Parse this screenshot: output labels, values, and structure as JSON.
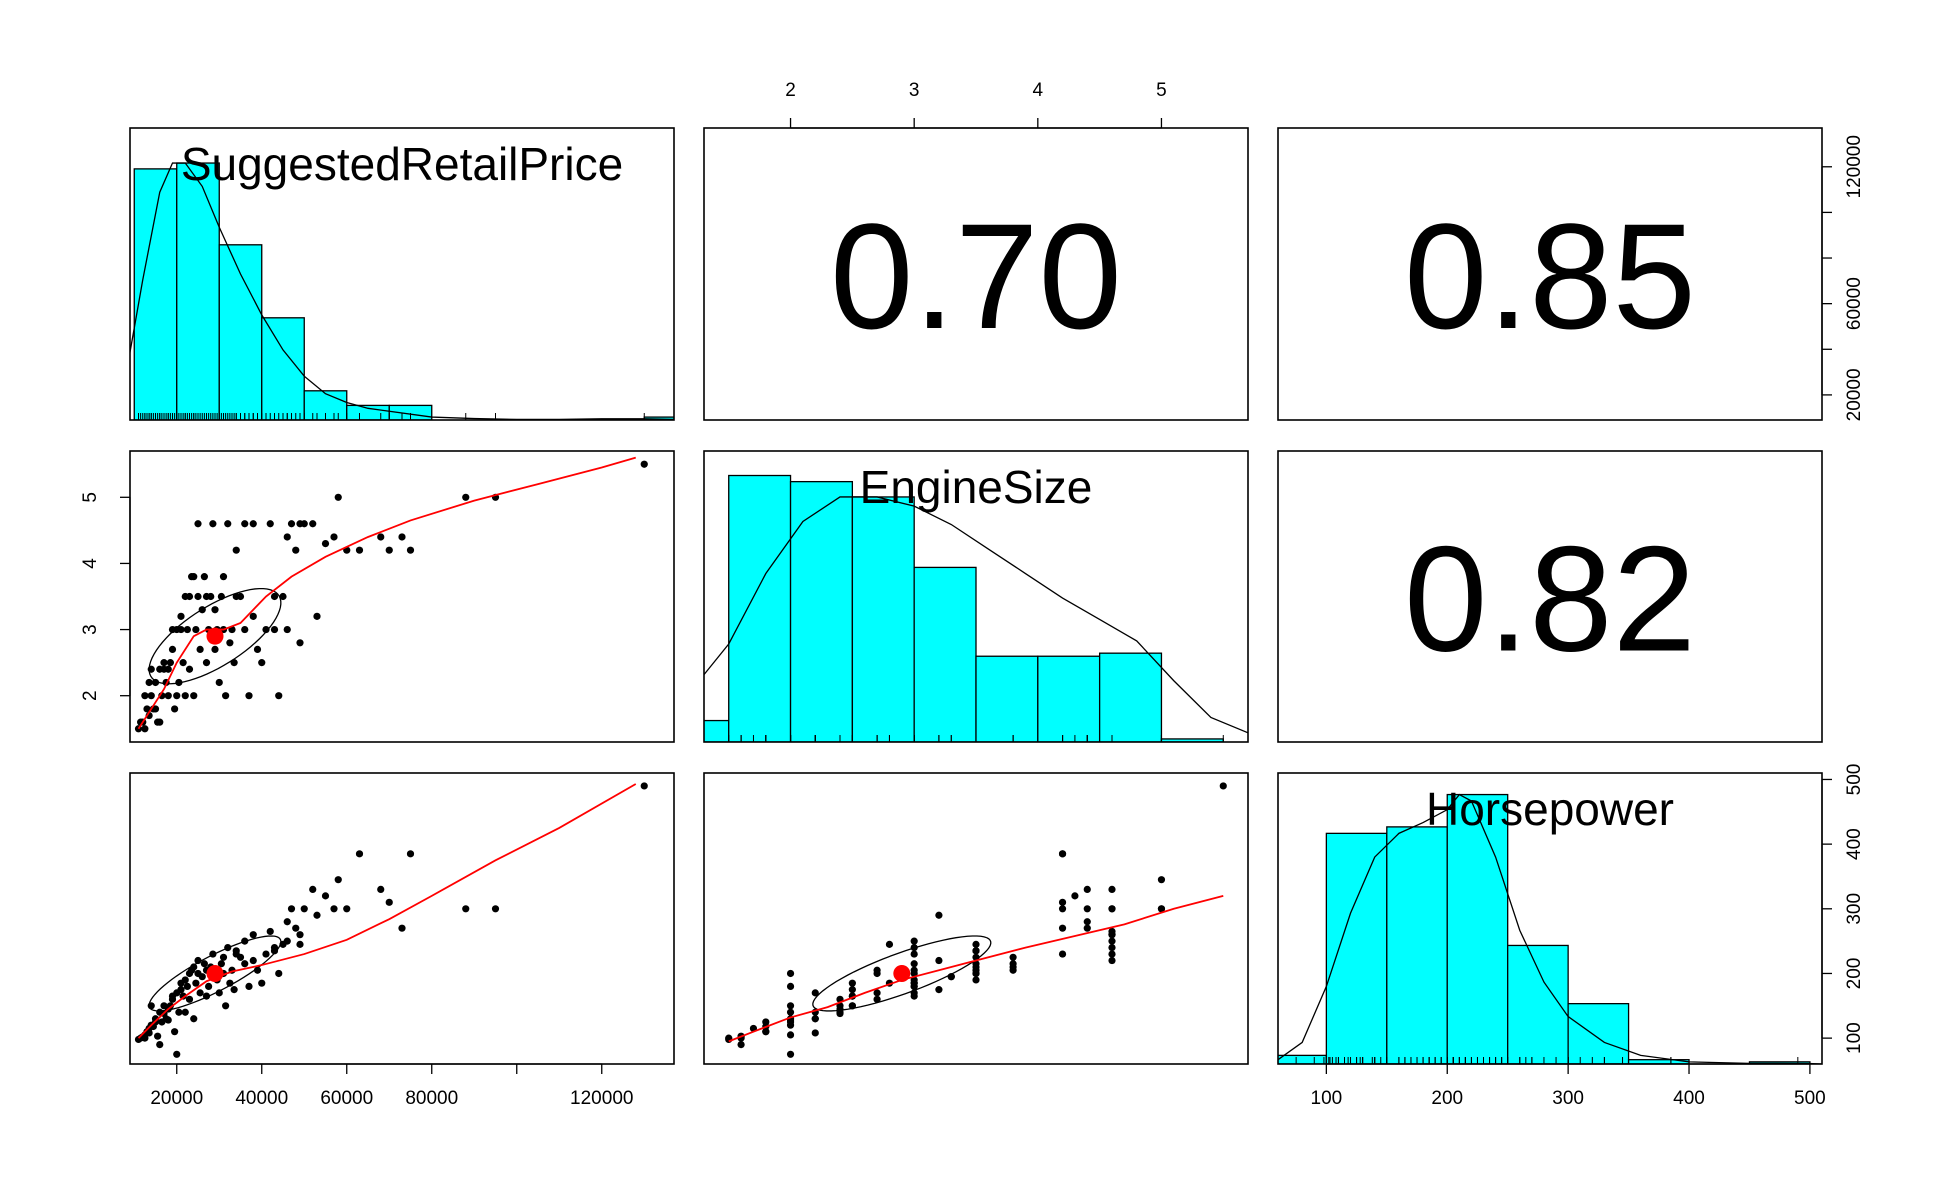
{
  "chart_data": {
    "type": "scatter",
    "title": "",
    "variables": [
      "SuggestedRetailPrice",
      "EngineSize",
      "Horsepower"
    ],
    "ranges": {
      "SuggestedRetailPrice": [
        9000,
        137000
      ],
      "EngineSize": [
        1.3,
        5.7
      ],
      "Horsepower": [
        60,
        510
      ]
    },
    "ticks": {
      "SuggestedRetailPrice": [
        20000,
        40000,
        60000,
        80000,
        120000
      ],
      "EngineSize": [
        2,
        3,
        4,
        5
      ],
      "Horsepower": [
        100,
        200,
        300,
        400,
        500
      ]
    },
    "minor_ticks": {
      "SuggestedRetailPrice": [
        100000
      ]
    },
    "correlations": [
      {
        "row": 0,
        "col": 1,
        "label": "0.70"
      },
      {
        "row": 0,
        "col": 2,
        "label": "0.85"
      },
      {
        "row": 1,
        "col": 2,
        "label": "0.82"
      }
    ],
    "histograms": {
      "SuggestedRetailPrice": {
        "breaks": [
          10000,
          20000,
          30000,
          40000,
          50000,
          60000,
          70000,
          80000,
          90000,
          100000,
          110000,
          120000,
          130000,
          140000
        ],
        "counts": [
          86,
          88,
          60,
          35,
          10,
          5,
          5,
          0,
          0,
          0,
          0,
          0,
          1
        ],
        "ymax": 100
      },
      "EngineSize": {
        "breaks": [
          1.0,
          1.5,
          2.0,
          2.5,
          3.0,
          3.5,
          4.0,
          4.5,
          5.0,
          5.5,
          6.0
        ],
        "counts": [
          7,
          87,
          85,
          80,
          57,
          28,
          28,
          29,
          1,
          0
        ],
        "ymax": 95
      },
      "Horsepower": {
        "breaks": [
          50,
          100,
          150,
          200,
          250,
          300,
          350,
          400,
          450,
          500
        ],
        "counts": [
          4,
          107,
          110,
          125,
          55,
          28,
          2,
          0,
          1
        ],
        "ymax": 135
      }
    },
    "density_curves": {
      "SuggestedRetailPrice": [
        [
          8000,
          15
        ],
        [
          12000,
          48
        ],
        [
          16000,
          78
        ],
        [
          19000,
          88
        ],
        [
          22000,
          88
        ],
        [
          26000,
          80
        ],
        [
          30000,
          66
        ],
        [
          35000,
          50
        ],
        [
          40000,
          36
        ],
        [
          45000,
          24
        ],
        [
          50000,
          15
        ],
        [
          55000,
          9
        ],
        [
          60000,
          6
        ],
        [
          65000,
          4
        ],
        [
          70000,
          3
        ],
        [
          80000,
          1
        ],
        [
          90000,
          0.5
        ],
        [
          100000,
          0.2
        ],
        [
          110000,
          0.2
        ],
        [
          120000,
          0.4
        ],
        [
          130000,
          0.4
        ],
        [
          138000,
          0.2
        ]
      ],
      "EngineSize": [
        [
          1.3,
          22
        ],
        [
          1.5,
          32
        ],
        [
          1.8,
          55
        ],
        [
          2.1,
          72
        ],
        [
          2.4,
          80
        ],
        [
          2.7,
          80
        ],
        [
          3.0,
          77
        ],
        [
          3.3,
          71
        ],
        [
          3.6,
          63
        ],
        [
          3.9,
          55
        ],
        [
          4.2,
          47
        ],
        [
          4.5,
          40
        ],
        [
          4.8,
          33
        ],
        [
          5.1,
          20
        ],
        [
          5.4,
          8
        ],
        [
          5.7,
          3
        ]
      ],
      "Horsepower": [
        [
          60,
          2
        ],
        [
          80,
          10
        ],
        [
          100,
          36
        ],
        [
          120,
          70
        ],
        [
          140,
          96
        ],
        [
          160,
          107
        ],
        [
          180,
          112
        ],
        [
          200,
          118
        ],
        [
          210,
          125
        ],
        [
          220,
          122
        ],
        [
          240,
          96
        ],
        [
          260,
          62
        ],
        [
          280,
          38
        ],
        [
          300,
          22
        ],
        [
          330,
          10
        ],
        [
          360,
          4
        ],
        [
          400,
          1
        ],
        [
          450,
          0.3
        ],
        [
          500,
          0.2
        ],
        [
          510,
          0
        ]
      ]
    },
    "loess": {
      "EngineSize_vs_Price": [
        [
          11000,
          1.5
        ],
        [
          14000,
          1.8
        ],
        [
          17000,
          2.1
        ],
        [
          20000,
          2.5
        ],
        [
          24000,
          2.9
        ],
        [
          27000,
          3.0
        ],
        [
          31000,
          3.0
        ],
        [
          35000,
          3.1
        ],
        [
          41000,
          3.5
        ],
        [
          47000,
          3.8
        ],
        [
          55000,
          4.1
        ],
        [
          65000,
          4.4
        ],
        [
          75000,
          4.65
        ],
        [
          90000,
          4.95
        ],
        [
          105000,
          5.2
        ],
        [
          120000,
          5.45
        ],
        [
          128000,
          5.6
        ]
      ],
      "Horsepower_vs_Price": [
        [
          11000,
          100
        ],
        [
          14000,
          120
        ],
        [
          18000,
          145
        ],
        [
          22000,
          165
        ],
        [
          27000,
          188
        ],
        [
          33000,
          203
        ],
        [
          40000,
          213
        ],
        [
          50000,
          230
        ],
        [
          60000,
          252
        ],
        [
          70000,
          284
        ],
        [
          80000,
          320
        ],
        [
          95000,
          375
        ],
        [
          110000,
          425
        ],
        [
          128000,
          493
        ]
      ],
      "Horsepower_vs_EngineSize": [
        [
          1.5,
          95
        ],
        [
          1.7,
          110
        ],
        [
          2.0,
          132
        ],
        [
          2.3,
          148
        ],
        [
          2.6,
          170
        ],
        [
          2.9,
          190
        ],
        [
          3.2,
          205
        ],
        [
          3.5,
          220
        ],
        [
          3.9,
          240
        ],
        [
          4.3,
          258
        ],
        [
          4.7,
          276
        ],
        [
          5.1,
          300
        ],
        [
          5.5,
          320
        ]
      ]
    },
    "means": {
      "SuggestedRetailPrice": 29000,
      "EngineSize": 2.9,
      "Horsepower": 200
    },
    "ellipses": {
      "EngineSize_vs_Price": {
        "center": [
          29000,
          2.9
        ],
        "cor": 0.7,
        "sd": [
          15500,
          0.72
        ]
      },
      "Horsepower_vs_Price": {
        "center": [
          29000,
          200
        ],
        "cor": 0.85,
        "sd": [
          15500,
          58
        ]
      },
      "Horsepower_vs_EngineSize": {
        "center": [
          2.9,
          200
        ],
        "cor": 0.82,
        "sd": [
          0.72,
          58
        ]
      }
    },
    "point_colors": {
      "fill": "#00FFFF",
      "points": "#000000",
      "smooth": "#FF0000",
      "mean": "#FF0000"
    },
    "scatter_points": [
      [
        11000,
        1.5,
        98
      ],
      [
        11500,
        1.6,
        100
      ],
      [
        12000,
        1.6,
        102
      ],
      [
        12500,
        1.5,
        100
      ],
      [
        13000,
        1.8,
        110
      ],
      [
        13500,
        1.7,
        115
      ],
      [
        14000,
        2.0,
        120
      ],
      [
        14500,
        1.8,
        118
      ],
      [
        15000,
        2.2,
        130
      ],
      [
        15500,
        1.6,
        103
      ],
      [
        16000,
        2.4,
        140
      ],
      [
        16500,
        2.0,
        125
      ],
      [
        17000,
        2.4,
        138
      ],
      [
        17500,
        2.2,
        130
      ],
      [
        18000,
        2.0,
        128
      ],
      [
        18500,
        2.5,
        150
      ],
      [
        19000,
        2.7,
        160
      ],
      [
        19500,
        1.8,
        110
      ],
      [
        20000,
        3.0,
        170
      ],
      [
        20500,
        2.2,
        140
      ],
      [
        21000,
        3.2,
        175
      ],
      [
        21500,
        2.5,
        165
      ],
      [
        22000,
        3.5,
        190
      ],
      [
        22500,
        3.0,
        180
      ],
      [
        23000,
        2.4,
        160
      ],
      [
        23500,
        3.8,
        205
      ],
      [
        24000,
        2.0,
        130
      ],
      [
        24500,
        3.0,
        185
      ],
      [
        25000,
        3.5,
        200
      ],
      [
        25500,
        2.7,
        170
      ],
      [
        26000,
        3.3,
        195
      ],
      [
        26500,
        3.8,
        215
      ],
      [
        27000,
        2.5,
        165
      ],
      [
        27500,
        3.0,
        180
      ],
      [
        28000,
        3.5,
        210
      ],
      [
        28500,
        4.6,
        230
      ],
      [
        29000,
        2.7,
        200
      ],
      [
        29500,
        3.0,
        190
      ],
      [
        30000,
        2.2,
        170
      ],
      [
        30500,
        3.5,
        215
      ],
      [
        31000,
        3.8,
        225
      ],
      [
        31500,
        2.0,
        150
      ],
      [
        32000,
        4.6,
        240
      ],
      [
        32500,
        2.8,
        185
      ],
      [
        33000,
        3.0,
        205
      ],
      [
        33500,
        2.5,
        175
      ],
      [
        34000,
        4.2,
        230
      ],
      [
        35000,
        3.5,
        225
      ],
      [
        36000,
        3.0,
        215
      ],
      [
        37000,
        2.0,
        180
      ],
      [
        38000,
        3.2,
        220
      ],
      [
        39000,
        2.7,
        205
      ],
      [
        40000,
        2.5,
        185
      ],
      [
        41000,
        3.0,
        230
      ],
      [
        42000,
        4.6,
        265
      ],
      [
        43000,
        3.0,
        240
      ],
      [
        44000,
        2.0,
        200
      ],
      [
        45000,
        3.5,
        245
      ],
      [
        46000,
        4.4,
        280
      ],
      [
        47000,
        4.6,
        300
      ],
      [
        48000,
        4.2,
        270
      ],
      [
        49000,
        2.8,
        245
      ],
      [
        50000,
        4.6,
        300
      ],
      [
        52000,
        4.6,
        330
      ],
      [
        53000,
        3.2,
        290
      ],
      [
        55000,
        4.3,
        320
      ],
      [
        57000,
        4.4,
        300
      ],
      [
        60000,
        4.2,
        300
      ],
      [
        63000,
        4.2,
        385
      ],
      [
        68000,
        4.4,
        330
      ],
      [
        70000,
        4.2,
        310
      ],
      [
        73000,
        4.4,
        270
      ],
      [
        75000,
        4.2,
        385
      ],
      [
        88000,
        5.0,
        300
      ],
      [
        95000,
        5.0,
        300
      ],
      [
        130000,
        5.5,
        490
      ],
      [
        12500,
        2.0,
        105
      ],
      [
        13500,
        2.2,
        108
      ],
      [
        15000,
        1.8,
        125
      ],
      [
        17000,
        2.5,
        150
      ],
      [
        18000,
        2.4,
        145
      ],
      [
        19000,
        3.0,
        165
      ],
      [
        21000,
        3.0,
        185
      ],
      [
        23000,
        3.5,
        200
      ],
      [
        24000,
        3.8,
        210
      ],
      [
        25000,
        4.6,
        220
      ],
      [
        27000,
        3.5,
        205
      ],
      [
        29000,
        3.3,
        195
      ],
      [
        31000,
        3.0,
        200
      ],
      [
        34000,
        3.5,
        235
      ],
      [
        36000,
        4.6,
        250
      ],
      [
        38000,
        4.6,
        260
      ],
      [
        43000,
        3.5,
        235
      ],
      [
        46000,
        3.0,
        250
      ],
      [
        49000,
        4.6,
        260
      ],
      [
        58000,
        5.0,
        345
      ],
      [
        16000,
        1.6,
        90
      ],
      [
        20000,
        2.0,
        75
      ],
      [
        14000,
        2.4,
        150
      ],
      [
        22000,
        2.0,
        140
      ]
    ]
  }
}
